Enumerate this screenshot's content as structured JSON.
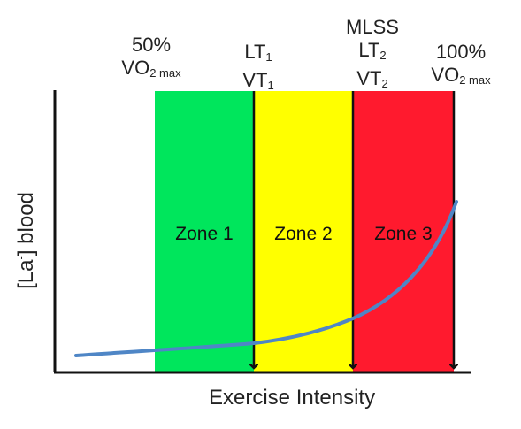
{
  "colors": {
    "zone1": "#00e65c",
    "zone2": "#ffff00",
    "zone3": "#ff1a2e",
    "curve": "#4f86c6",
    "axis": "#111111",
    "arrow": "#111111"
  },
  "labels": {
    "pct50": {
      "line1": "50%",
      "line2_main": "VO",
      "line2_sub": "2 max"
    },
    "lt1": {
      "l1_main": "LT",
      "l1_sub": "1",
      "l2_main": "VT",
      "l2_sub": "1"
    },
    "mlss": {
      "l1": "MLSS",
      "l2_main": "LT",
      "l2_sub": "2",
      "l3_main": "VT",
      "l3_sub": "2"
    },
    "pct100": {
      "line1": "100%",
      "line2_main": "VO",
      "line2_sub": "2 max"
    }
  },
  "zones": [
    {
      "label": "Zone 1"
    },
    {
      "label": "Zone 2"
    },
    {
      "label": "Zone 3"
    }
  ],
  "axes": {
    "x_label": "Exercise Intensity",
    "y_label_pre": "[La",
    "y_label_sup": "-",
    "y_label_post": "] blood"
  },
  "icons": [
    "down-arrow-icon"
  ]
}
